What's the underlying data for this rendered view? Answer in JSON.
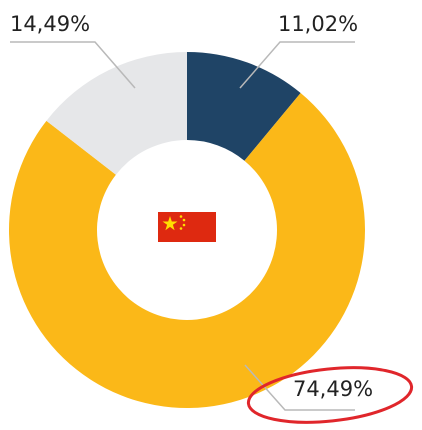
{
  "chart_data": {
    "type": "donut",
    "values": [
      11.02,
      74.49,
      14.49
    ],
    "value_labels": [
      "11,02%",
      "74,49%",
      "14,49%"
    ],
    "colors": [
      "#1f4466",
      "#fbb818",
      "#e6e7e9"
    ]
  }
}
